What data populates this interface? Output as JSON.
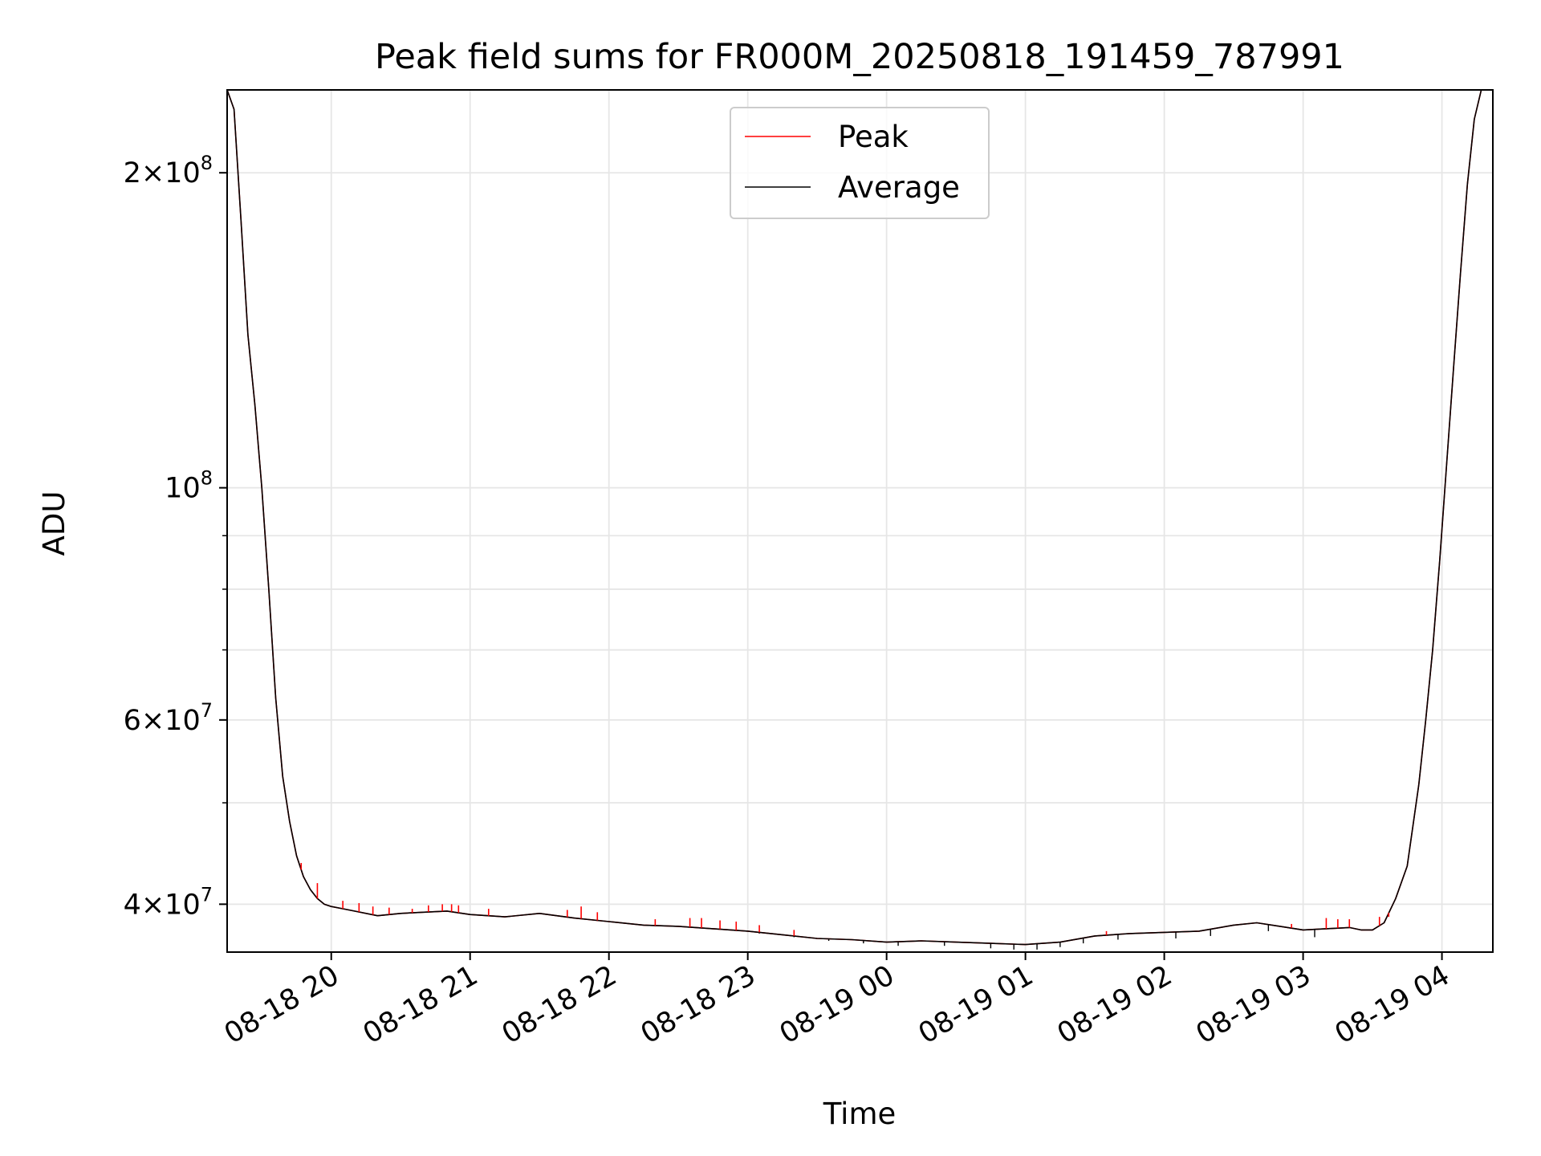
{
  "chart_data": {
    "type": "line",
    "title": "Peak field sums for FR000M_20250818_191459_787991",
    "xlabel": "Time",
    "ylabel": "ADU",
    "x_axis": "datetime",
    "y_scale": "log",
    "xlim": [
      "2025-08-18 19:15",
      "2025-08-19 04:22"
    ],
    "ylim": [
      36000000,
      240000000
    ],
    "x_ticks": [
      {
        "value": "2025-08-18 20:00",
        "label": "08-18 20"
      },
      {
        "value": "2025-08-18 21:00",
        "label": "08-18 21"
      },
      {
        "value": "2025-08-18 22:00",
        "label": "08-18 22"
      },
      {
        "value": "2025-08-18 23:00",
        "label": "08-18 23"
      },
      {
        "value": "2025-08-19 00:00",
        "label": "08-19 00"
      },
      {
        "value": "2025-08-19 01:00",
        "label": "08-19 01"
      },
      {
        "value": "2025-08-19 02:00",
        "label": "08-19 02"
      },
      {
        "value": "2025-08-19 03:00",
        "label": "08-19 03"
      },
      {
        "value": "2025-08-19 04:00",
        "label": "08-19 04"
      }
    ],
    "y_ticks_major": [
      {
        "value": 40000000,
        "mantissa": "4",
        "exponent": "7"
      },
      {
        "value": 60000000,
        "mantissa": "6",
        "exponent": "7"
      },
      {
        "value": 100000000,
        "mantissa": "",
        "exponent": "8"
      },
      {
        "value": 200000000,
        "mantissa": "2",
        "exponent": "8"
      }
    ],
    "y_ticks_minor": [
      50000000,
      70000000,
      80000000,
      90000000
    ],
    "grid": true,
    "legend": {
      "placement": "upper center",
      "entries": [
        "Peak",
        "Average"
      ]
    },
    "series": [
      {
        "name": "Peak",
        "color": "#ff0000",
        "x": [
          "2025-08-18 19:15",
          "2025-08-18 19:18",
          "2025-08-18 19:21",
          "2025-08-18 19:24",
          "2025-08-18 19:27",
          "2025-08-18 19:30",
          "2025-08-18 19:33",
          "2025-08-18 19:36",
          "2025-08-18 19:39",
          "2025-08-18 19:42",
          "2025-08-18 19:45",
          "2025-08-18 19:48",
          "2025-08-18 19:51",
          "2025-08-18 19:54",
          "2025-08-18 19:57",
          "2025-08-18 20:00",
          "2025-08-18 20:05",
          "2025-08-18 20:10",
          "2025-08-18 20:20",
          "2025-08-18 20:30",
          "2025-08-18 20:40",
          "2025-08-18 20:50",
          "2025-08-18 21:00",
          "2025-08-18 21:15",
          "2025-08-18 21:30",
          "2025-08-18 21:45",
          "2025-08-18 22:00",
          "2025-08-18 22:15",
          "2025-08-18 22:30",
          "2025-08-18 22:45",
          "2025-08-18 23:00",
          "2025-08-18 23:15",
          "2025-08-18 23:30",
          "2025-08-18 23:45",
          "2025-08-19 00:00",
          "2025-08-19 00:15",
          "2025-08-19 00:30",
          "2025-08-19 00:45",
          "2025-08-19 01:00",
          "2025-08-19 01:15",
          "2025-08-19 01:30",
          "2025-08-19 01:45",
          "2025-08-19 02:00",
          "2025-08-19 02:15",
          "2025-08-19 02:30",
          "2025-08-19 02:40",
          "2025-08-19 02:50",
          "2025-08-19 03:00",
          "2025-08-19 03:10",
          "2025-08-19 03:20",
          "2025-08-19 03:25",
          "2025-08-19 03:30",
          "2025-08-19 03:35",
          "2025-08-19 03:40",
          "2025-08-19 03:45",
          "2025-08-19 03:50",
          "2025-08-19 03:53",
          "2025-08-19 03:56",
          "2025-08-19 03:59",
          "2025-08-19 04:02",
          "2025-08-19 04:05",
          "2025-08-19 04:08",
          "2025-08-19 04:11",
          "2025-08-19 04:14",
          "2025-08-19 04:17",
          "2025-08-19 04:20",
          "2025-08-19 04:22"
        ],
        "y": [
          240000000,
          230000000,
          180000000,
          140000000,
          120000000,
          100000000,
          80000000,
          63000000,
          53000000,
          48000000,
          44500000,
          42500000,
          41300000,
          40500000,
          40000000,
          39800000,
          39600000,
          39400000,
          39000000,
          39200000,
          39300000,
          39400000,
          39100000,
          38900000,
          39200000,
          38800000,
          38500000,
          38200000,
          38100000,
          37900000,
          37700000,
          37400000,
          37100000,
          37000000,
          36800000,
          36900000,
          36800000,
          36700000,
          36600000,
          36800000,
          37300000,
          37500000,
          37600000,
          37700000,
          38200000,
          38400000,
          38100000,
          37800000,
          37900000,
          38000000,
          37800000,
          37800000,
          38400000,
          40500000,
          43500000,
          52000000,
          60000000,
          70000000,
          85000000,
          105000000,
          130000000,
          160000000,
          195000000,
          225000000,
          240000000,
          240000000,
          240000000
        ]
      },
      {
        "name": "Average",
        "color": "#000000",
        "x": [
          "2025-08-18 19:15",
          "2025-08-18 19:18",
          "2025-08-18 19:21",
          "2025-08-18 19:24",
          "2025-08-18 19:27",
          "2025-08-18 19:30",
          "2025-08-18 19:33",
          "2025-08-18 19:36",
          "2025-08-18 19:39",
          "2025-08-18 19:42",
          "2025-08-18 19:45",
          "2025-08-18 19:48",
          "2025-08-18 19:51",
          "2025-08-18 19:54",
          "2025-08-18 19:57",
          "2025-08-18 20:00",
          "2025-08-18 20:05",
          "2025-08-18 20:10",
          "2025-08-18 20:20",
          "2025-08-18 20:30",
          "2025-08-18 20:40",
          "2025-08-18 20:50",
          "2025-08-18 21:00",
          "2025-08-18 21:15",
          "2025-08-18 21:30",
          "2025-08-18 21:45",
          "2025-08-18 22:00",
          "2025-08-18 22:15",
          "2025-08-18 22:30",
          "2025-08-18 22:45",
          "2025-08-18 23:00",
          "2025-08-18 23:15",
          "2025-08-18 23:30",
          "2025-08-18 23:45",
          "2025-08-19 00:00",
          "2025-08-19 00:15",
          "2025-08-19 00:30",
          "2025-08-19 00:45",
          "2025-08-19 01:00",
          "2025-08-19 01:15",
          "2025-08-19 01:30",
          "2025-08-19 01:45",
          "2025-08-19 02:00",
          "2025-08-19 02:15",
          "2025-08-19 02:30",
          "2025-08-19 02:40",
          "2025-08-19 02:50",
          "2025-08-19 03:00",
          "2025-08-19 03:10",
          "2025-08-19 03:20",
          "2025-08-19 03:25",
          "2025-08-19 03:30",
          "2025-08-19 03:35",
          "2025-08-19 03:40",
          "2025-08-19 03:45",
          "2025-08-19 03:50",
          "2025-08-19 03:53",
          "2025-08-19 03:56",
          "2025-08-19 03:59",
          "2025-08-19 04:02",
          "2025-08-19 04:05",
          "2025-08-19 04:08",
          "2025-08-19 04:11",
          "2025-08-19 04:14",
          "2025-08-19 04:17",
          "2025-08-19 04:20",
          "2025-08-19 04:22"
        ],
        "y": [
          240000000,
          230000000,
          180000000,
          140000000,
          120000000,
          100000000,
          80000000,
          63000000,
          53000000,
          48000000,
          44500000,
          42500000,
          41300000,
          40500000,
          40000000,
          39800000,
          39600000,
          39400000,
          39000000,
          39200000,
          39300000,
          39400000,
          39100000,
          38900000,
          39200000,
          38800000,
          38500000,
          38200000,
          38100000,
          37900000,
          37700000,
          37400000,
          37100000,
          37000000,
          36800000,
          36900000,
          36800000,
          36700000,
          36600000,
          36800000,
          37300000,
          37500000,
          37600000,
          37700000,
          38200000,
          38400000,
          38100000,
          37800000,
          37900000,
          38000000,
          37800000,
          37800000,
          38400000,
          40500000,
          43500000,
          52000000,
          60000000,
          70000000,
          85000000,
          105000000,
          130000000,
          160000000,
          195000000,
          225000000,
          240000000,
          240000000,
          240000000
        ]
      }
    ],
    "peak_spikes": [
      {
        "x": "2025-08-18 19:47",
        "y": 43800000
      },
      {
        "x": "2025-08-18 19:54",
        "y": 41900000
      },
      {
        "x": "2025-08-18 20:05",
        "y": 40300000
      },
      {
        "x": "2025-08-18 20:12",
        "y": 40100000
      },
      {
        "x": "2025-08-18 20:18",
        "y": 39800000
      },
      {
        "x": "2025-08-18 20:25",
        "y": 39700000
      },
      {
        "x": "2025-08-18 20:35",
        "y": 39600000
      },
      {
        "x": "2025-08-18 20:42",
        "y": 39900000
      },
      {
        "x": "2025-08-18 20:48",
        "y": 40000000
      },
      {
        "x": "2025-08-18 20:52",
        "y": 40000000
      },
      {
        "x": "2025-08-18 20:55",
        "y": 39900000
      },
      {
        "x": "2025-08-18 21:08",
        "y": 39600000
      },
      {
        "x": "2025-08-18 21:42",
        "y": 39500000
      },
      {
        "x": "2025-08-18 21:48",
        "y": 39800000
      },
      {
        "x": "2025-08-18 21:55",
        "y": 39300000
      },
      {
        "x": "2025-08-18 22:20",
        "y": 38700000
      },
      {
        "x": "2025-08-18 22:35",
        "y": 38800000
      },
      {
        "x": "2025-08-18 22:40",
        "y": 38800000
      },
      {
        "x": "2025-08-18 22:48",
        "y": 38600000
      },
      {
        "x": "2025-08-18 22:55",
        "y": 38500000
      },
      {
        "x": "2025-08-18 23:05",
        "y": 38200000
      },
      {
        "x": "2025-08-18 23:20",
        "y": 37800000
      },
      {
        "x": "2025-08-19 01:35",
        "y": 37700000
      },
      {
        "x": "2025-08-19 02:55",
        "y": 38300000
      },
      {
        "x": "2025-08-19 03:10",
        "y": 38800000
      },
      {
        "x": "2025-08-19 03:15",
        "y": 38700000
      },
      {
        "x": "2025-08-19 03:20",
        "y": 38700000
      },
      {
        "x": "2025-08-19 03:33",
        "y": 38900000
      },
      {
        "x": "2025-08-19 03:37",
        "y": 38900000
      }
    ],
    "average_dips": [
      {
        "x": "2025-08-18 23:05",
        "y": 37500000
      },
      {
        "x": "2025-08-18 23:20",
        "y": 37200000
      },
      {
        "x": "2025-08-18 23:35",
        "y": 36900000
      },
      {
        "x": "2025-08-18 23:50",
        "y": 36700000
      },
      {
        "x": "2025-08-19 00:05",
        "y": 36500000
      },
      {
        "x": "2025-08-19 00:25",
        "y": 36500000
      },
      {
        "x": "2025-08-19 00:45",
        "y": 36300000
      },
      {
        "x": "2025-08-19 00:55",
        "y": 36200000
      },
      {
        "x": "2025-08-19 01:05",
        "y": 36200000
      },
      {
        "x": "2025-08-19 01:15",
        "y": 36400000
      },
      {
        "x": "2025-08-19 01:25",
        "y": 36700000
      },
      {
        "x": "2025-08-19 01:40",
        "y": 37000000
      },
      {
        "x": "2025-08-19 02:05",
        "y": 37100000
      },
      {
        "x": "2025-08-19 02:20",
        "y": 37300000
      },
      {
        "x": "2025-08-19 02:45",
        "y": 37700000
      },
      {
        "x": "2025-08-19 03:05",
        "y": 37200000
      }
    ]
  }
}
